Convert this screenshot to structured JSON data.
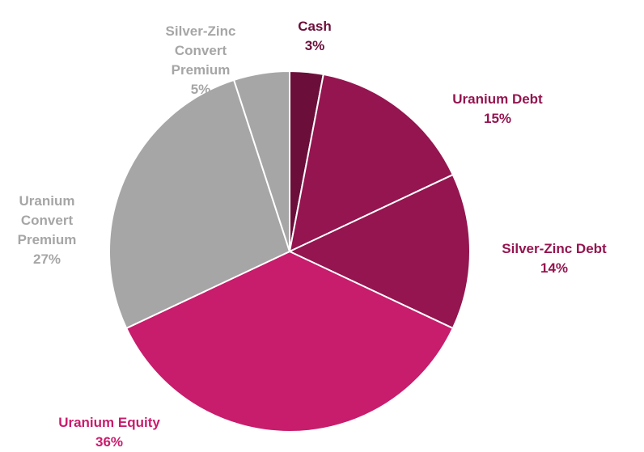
{
  "chart_data": {
    "type": "pie",
    "categories": [
      "Cash",
      "Uranium Debt",
      "Silver-Zinc Debt",
      "Uranium Equity",
      "Uranium Convert Premium",
      "Silver-Zinc Convert Premium"
    ],
    "values": [
      3,
      15,
      14,
      36,
      27,
      5
    ],
    "value_labels": [
      "3%",
      "15%",
      "14%",
      "36%",
      "27%",
      "5%"
    ],
    "colors": [
      "#6b0f3a",
      "#94154f",
      "#94154f",
      "#c81c6c",
      "#a6a6a6",
      "#a6a6a6"
    ]
  }
}
